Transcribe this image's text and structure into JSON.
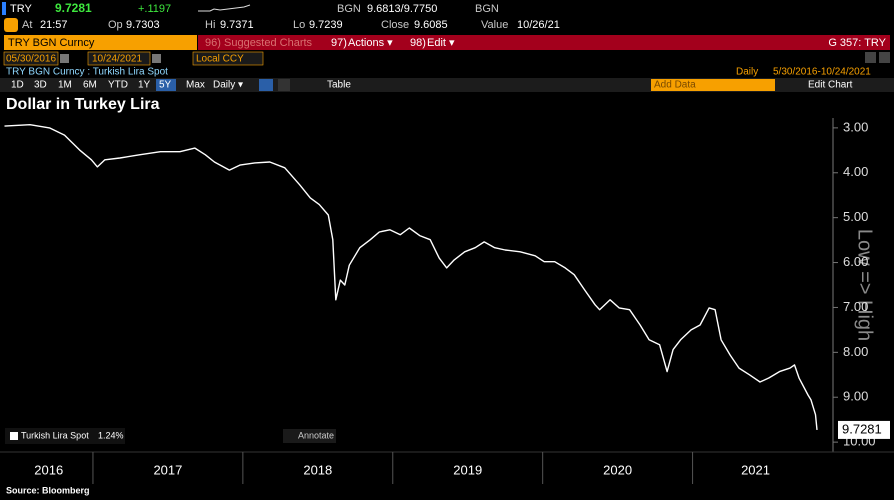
{
  "ui": {
    "row1": {
      "ticker": "TRY",
      "last": "9.7281",
      "change": "+.1197",
      "source1": "BGN",
      "bidask": "9.6813/9.7750",
      "source2": "BGN"
    },
    "row2": {
      "at_label": "At",
      "at": "21:57",
      "op_label": "Op",
      "op": "9.7303",
      "hi_label": "Hi",
      "hi": "9.7371",
      "lo_label": "Lo",
      "lo": "9.7239",
      "close_label": "Close",
      "close": "9.6085",
      "value_label": "Value",
      "value": "10/26/21"
    },
    "row3": {
      "security": "TRY BGN Curncy",
      "menu1_num": "96)",
      "menu1": "Suggested Charts",
      "menu2_num": "97)",
      "menu2": "Actions ▾",
      "menu3_num": "98)",
      "menu3": "Edit ▾",
      "function": "G 357: TRY"
    },
    "row4": {
      "start": "05/30/2016",
      "end": "10/24/2021",
      "currency": "Local CCY"
    },
    "row5": {
      "description": "TRY BGN Curncy : Turkish Lira Spot",
      "period": "Daily",
      "range": "5/30/2016-10/24/2021"
    },
    "row6": {
      "tabs": [
        "1D",
        "3D",
        "1M",
        "6M",
        "YTD",
        "1Y",
        "5Y",
        "Max"
      ],
      "frequency": "Daily ▾",
      "table": "Table",
      "add_data": "Add Data",
      "edit_chart": "Edit Chart"
    },
    "legend_change": "1.24%",
    "annotate": "Annotate",
    "footer": "Source: Bloomberg"
  },
  "chart_data": {
    "type": "line",
    "title": "Dollar in Turkey Lira",
    "y_axis_label": "Low => High",
    "series": [
      {
        "name": "Turkish Lira Spot",
        "color": "#ffffff",
        "x": [
          2016.41,
          2016.58,
          2016.71,
          2016.81,
          2016.91,
          2016.99,
          2017.03,
          2017.08,
          2017.18,
          2017.31,
          2017.45,
          2017.58,
          2017.68,
          2017.75,
          2017.81,
          2017.91,
          2017.98,
          2018.08,
          2018.18,
          2018.28,
          2018.38,
          2018.45,
          2018.51,
          2018.57,
          2018.6,
          2018.62,
          2018.65,
          2018.68,
          2018.71,
          2018.78,
          2018.85,
          2018.91,
          2018.98,
          2019.05,
          2019.11,
          2019.18,
          2019.25,
          2019.31,
          2019.36,
          2019.41,
          2019.48,
          2019.55,
          2019.61,
          2019.68,
          2019.75,
          2019.85,
          2019.95,
          2020.01,
          2020.08,
          2020.15,
          2020.21,
          2020.28,
          2020.35,
          2020.38,
          2020.45,
          2020.51,
          2020.58,
          2020.65,
          2020.71,
          2020.78,
          2020.83,
          2020.87,
          2020.92,
          2020.99,
          2021.05,
          2021.11,
          2021.15,
          2021.19,
          2021.25,
          2021.31,
          2021.38,
          2021.45,
          2021.51,
          2021.58,
          2021.65,
          2021.68,
          2021.71,
          2021.77,
          2021.79,
          2021.82,
          2021.83
        ],
        "values": [
          2.96,
          2.93,
          3.0,
          3.16,
          3.49,
          3.71,
          3.87,
          3.71,
          3.67,
          3.6,
          3.53,
          3.53,
          3.45,
          3.6,
          3.76,
          3.94,
          3.83,
          3.78,
          3.76,
          3.89,
          4.27,
          4.56,
          4.71,
          4.94,
          5.49,
          6.83,
          6.39,
          6.5,
          6.06,
          5.67,
          5.49,
          5.32,
          5.27,
          5.38,
          5.23,
          5.4,
          5.49,
          5.9,
          6.12,
          5.94,
          5.76,
          5.67,
          5.54,
          5.67,
          5.72,
          5.76,
          5.85,
          5.98,
          5.98,
          6.12,
          6.27,
          6.61,
          6.94,
          7.05,
          6.83,
          7.01,
          7.05,
          7.39,
          7.72,
          7.83,
          8.43,
          7.94,
          7.72,
          7.5,
          7.39,
          7.01,
          7.05,
          7.72,
          8.06,
          8.35,
          8.5,
          8.66,
          8.57,
          8.43,
          8.35,
          8.28,
          8.57,
          8.95,
          9.06,
          9.39,
          9.7281
        ]
      }
    ],
    "last_value": 9.7281,
    "xlim": [
      2016.41,
      2021.84
    ],
    "year_separators": [
      2017,
      2018,
      2019,
      2020,
      2021
    ],
    "year_labels": [
      "2016",
      "2017",
      "2018",
      "2019",
      "2020",
      "2021"
    ],
    "ylim": [
      2.78,
      10.22
    ],
    "inverted": true,
    "yticks": [
      {
        "value": 3,
        "label": "3.00"
      },
      {
        "value": 4,
        "label": "4.00"
      },
      {
        "value": 5,
        "label": "5.00"
      },
      {
        "value": 6,
        "label": "6.00"
      },
      {
        "value": 7,
        "label": "7.00"
      },
      {
        "value": 8,
        "label": "8.00"
      },
      {
        "value": 9,
        "label": "9.00"
      },
      {
        "value": 10,
        "label": "10.00"
      }
    ],
    "grid": false
  }
}
